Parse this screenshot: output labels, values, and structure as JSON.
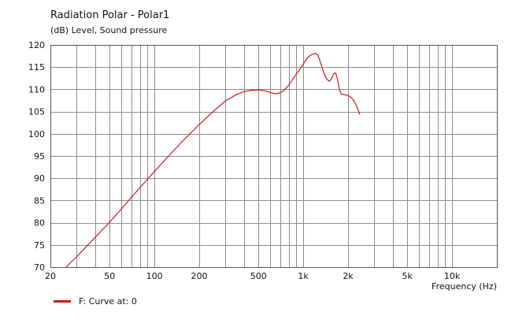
{
  "chart_data": {
    "type": "line",
    "title": "Radiation Polar - Polar1",
    "ylabel": "(dB)  Level, Sound pressure",
    "xlabel": "Frequency  (Hz)",
    "xscale": "log",
    "xlim": [
      20,
      20000
    ],
    "ylim": [
      70,
      120
    ],
    "x_ticks": [
      20,
      50,
      100,
      200,
      500,
      1000,
      2000,
      5000,
      10000
    ],
    "x_tick_labels": [
      "20",
      "50",
      "100",
      "200",
      "500",
      "1k",
      "2k",
      "5k",
      "10k"
    ],
    "y_ticks": [
      70,
      75,
      80,
      85,
      90,
      95,
      100,
      105,
      110,
      115,
      120
    ],
    "y_tick_labels": [
      "70",
      "75",
      "80",
      "85",
      "90",
      "95",
      "100",
      "105",
      "110",
      "115",
      "120"
    ],
    "grid": true,
    "legend_position": "bottom-left",
    "series": [
      {
        "name": "F: Curve at: 0",
        "color": "#cc1a1a",
        "points": [
          [
            25.5,
            70
          ],
          [
            30,
            72.3
          ],
          [
            40,
            76.7
          ],
          [
            50,
            80.1
          ],
          [
            60,
            83.1
          ],
          [
            70,
            85.7
          ],
          [
            80,
            87.9
          ],
          [
            100,
            91.5
          ],
          [
            120,
            94.4
          ],
          [
            150,
            97.9
          ],
          [
            200,
            102.1
          ],
          [
            250,
            105.1
          ],
          [
            300,
            107.4
          ],
          [
            350,
            108.7
          ],
          [
            400,
            109.5
          ],
          [
            450,
            109.8
          ],
          [
            500,
            109.9
          ],
          [
            550,
            109.7
          ],
          [
            600,
            109.3
          ],
          [
            650,
            109.0
          ],
          [
            700,
            109.2
          ],
          [
            750,
            109.9
          ],
          [
            800,
            111.0
          ],
          [
            850,
            112.3
          ],
          [
            900,
            113.5
          ],
          [
            950,
            114.6
          ],
          [
            1000,
            115.7
          ],
          [
            1050,
            116.8
          ],
          [
            1100,
            117.5
          ],
          [
            1150,
            117.9
          ],
          [
            1200,
            118.1
          ],
          [
            1250,
            117.8
          ],
          [
            1300,
            116.3
          ],
          [
            1350,
            114.5
          ],
          [
            1400,
            113.0
          ],
          [
            1450,
            112.2
          ],
          [
            1500,
            111.8
          ],
          [
            1550,
            112.4
          ],
          [
            1600,
            113.5
          ],
          [
            1650,
            113.7
          ],
          [
            1700,
            112.2
          ],
          [
            1750,
            110.0
          ],
          [
            1800,
            108.9
          ],
          [
            1850,
            108.9
          ],
          [
            1900,
            108.8
          ],
          [
            2000,
            108.6
          ],
          [
            2100,
            108.2
          ],
          [
            2200,
            107.3
          ],
          [
            2300,
            106.0
          ],
          [
            2400,
            104.3
          ]
        ]
      }
    ]
  }
}
